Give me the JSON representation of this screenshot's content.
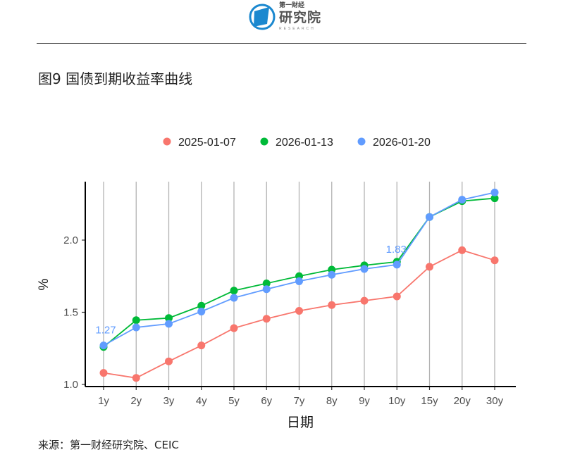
{
  "header": {
    "logo_text": "第一财经研究院",
    "logo_sub": "RESEARCH",
    "logo_top": "第一财经",
    "logo_main": "研究院"
  },
  "figure_title": "图9 国债到期收益率曲线",
  "source": "来源：第一财经研究院、CEIC",
  "chart_data": {
    "type": "line",
    "title": "",
    "xlabel": "日期",
    "ylabel": "%",
    "categories": [
      "1y",
      "2y",
      "3y",
      "4y",
      "5y",
      "6y",
      "7y",
      "8y",
      "9y",
      "10y",
      "15y",
      "20y",
      "30y"
    ],
    "ylim": [
      1.0,
      2.405
    ],
    "yticks": [
      1.0,
      1.5,
      2.0
    ],
    "ytick_labels": [
      "1.0",
      "1.5",
      "2.0"
    ],
    "grid": "vertical",
    "legend_position": "top",
    "series": [
      {
        "name": "2025-01-07",
        "color": "#F8766D",
        "values": [
          1.08,
          1.045,
          1.16,
          1.27,
          1.39,
          1.455,
          1.51,
          1.55,
          1.58,
          1.61,
          1.815,
          1.93,
          1.86
        ]
      },
      {
        "name": "2026-01-13",
        "color": "#00BA38",
        "values": [
          1.26,
          1.445,
          1.46,
          1.545,
          1.65,
          1.7,
          1.75,
          1.795,
          1.825,
          1.85,
          2.16,
          2.27,
          2.29
        ]
      },
      {
        "name": "2026-01-20",
        "color": "#619CFF",
        "values": [
          1.27,
          1.395,
          1.42,
          1.505,
          1.6,
          1.66,
          1.715,
          1.76,
          1.8,
          1.83,
          2.16,
          2.28,
          2.33
        ]
      }
    ],
    "annotations": [
      {
        "series": "2026-01-20",
        "category": "1y",
        "text": "1.27"
      },
      {
        "series": "2026-01-20",
        "category": "10y",
        "text": "1.83"
      }
    ]
  }
}
